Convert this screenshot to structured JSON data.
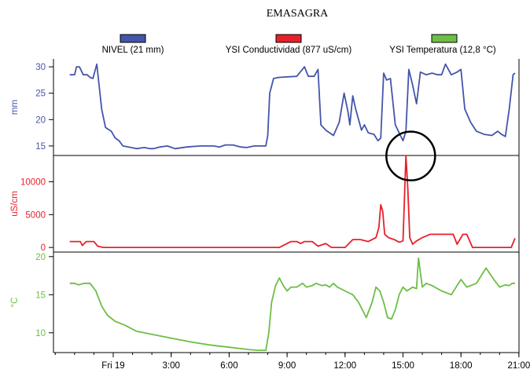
{
  "title": "EMASAGRA",
  "legend": [
    {
      "label": "NIVEL (21 mm)",
      "color": "#4455AA"
    },
    {
      "label": "YSI Conductividad (877 uS/cm)",
      "color": "#E8202A"
    },
    {
      "label": "YSI Temperatura (12,8 °C)",
      "color": "#6DBE45"
    }
  ],
  "x_axis": {
    "ticks": [
      {
        "label": "Fri 19",
        "hour": 0
      },
      {
        "label": "3:00",
        "hour": 3
      },
      {
        "label": "6:00",
        "hour": 6
      },
      {
        "label": "9:00",
        "hour": 9
      },
      {
        "label": "12:00",
        "hour": 12
      },
      {
        "label": "15:00",
        "hour": 15
      },
      {
        "label": "18:00",
        "hour": 18
      },
      {
        "label": "21:00",
        "hour": 21
      }
    ]
  },
  "chart_data": [
    {
      "type": "line",
      "name": "NIVEL (21 mm)",
      "ylabel": "mm",
      "ylim": [
        13.2,
        31.5
      ],
      "yticks": [
        15,
        20,
        25,
        30
      ],
      "color": "#4455AA",
      "x": [
        -2.25,
        -2.0,
        -1.9,
        -1.75,
        -1.55,
        -1.35,
        -1.2,
        -1.05,
        -0.85,
        -0.6,
        -0.4,
        -0.1,
        0.1,
        0.3,
        0.5,
        0.8,
        1.2,
        1.6,
        1.9,
        2.1,
        2.4,
        2.8,
        3.2,
        3.8,
        4.5,
        5.2,
        5.5,
        5.8,
        6.2,
        6.6,
        6.9,
        7.3,
        7.7,
        7.9,
        8.0,
        8.1,
        8.3,
        8.6,
        9.5,
        9.9,
        10.1,
        10.4,
        10.6,
        10.75,
        11.0,
        11.4,
        11.7,
        11.95,
        12.15,
        12.25,
        12.4,
        12.55,
        12.7,
        12.85,
        13.0,
        13.2,
        13.5,
        13.7,
        13.85,
        14.0,
        14.15,
        14.35,
        14.6,
        14.8,
        15.0,
        15.15,
        15.3,
        15.5,
        15.7,
        15.9,
        16.2,
        16.5,
        16.8,
        17.0,
        17.2,
        17.5,
        17.8,
        18.0,
        18.2,
        18.5,
        18.8,
        19.2,
        19.6,
        19.9,
        20.1,
        20.3,
        20.5,
        20.7,
        20.8
      ],
      "y": [
        28.5,
        28.5,
        30,
        30,
        28.5,
        28.5,
        28,
        27.8,
        30.5,
        22,
        18.5,
        17.8,
        16.5,
        16,
        15,
        14.8,
        14.5,
        14.7,
        14.5,
        14.5,
        14.8,
        15,
        14.5,
        14.8,
        15,
        15,
        14.8,
        15.2,
        15.2,
        14.8,
        14.7,
        15,
        15,
        15,
        17,
        25,
        27.8,
        28,
        28.2,
        30,
        28.2,
        28.2,
        29.5,
        19,
        18,
        17,
        19.5,
        25,
        21.5,
        19,
        24.5,
        22,
        20,
        18,
        19,
        17.5,
        17.2,
        16,
        16.5,
        28.8,
        27.5,
        27.8,
        19,
        17.5,
        16,
        17.8,
        29.5,
        26.5,
        23,
        29,
        28.5,
        28.8,
        28.5,
        28.5,
        30.5,
        28.5,
        29,
        29.5,
        22,
        19.5,
        17.8,
        17.2,
        17,
        17.8,
        17.2,
        16.8,
        22,
        28.5,
        28.8
      ]
    },
    {
      "type": "line",
      "name": "YSI Conductividad (877 uS/cm)",
      "ylabel": "uS/cm",
      "ylim": [
        -700,
        14000
      ],
      "yticks": [
        0,
        5000,
        10000
      ],
      "color": "#E8202A",
      "x": [
        -2.25,
        -1.7,
        -1.6,
        -1.4,
        -1.0,
        -0.8,
        -0.5,
        2.0,
        5.0,
        8.0,
        8.3,
        8.6,
        9.2,
        9.5,
        9.7,
        9.9,
        10.3,
        10.6,
        11.0,
        11.3,
        11.6,
        12.0,
        12.4,
        12.8,
        13.2,
        13.6,
        13.75,
        13.85,
        13.95,
        14.05,
        14.25,
        14.55,
        14.8,
        15.0,
        15.15,
        15.25,
        15.35,
        15.5,
        15.7,
        16.0,
        16.4,
        17.0,
        17.6,
        17.8,
        18.1,
        18.3,
        18.6,
        19.5,
        20.2,
        20.6,
        20.8
      ],
      "y": [
        900,
        900,
        300,
        900,
        900,
        200,
        0,
        0,
        0,
        0,
        0,
        0,
        900,
        900,
        600,
        900,
        900,
        200,
        600,
        0,
        0,
        0,
        1200,
        1200,
        900,
        1500,
        3000,
        6500,
        5500,
        2000,
        1500,
        1200,
        800,
        1000,
        14000,
        9000,
        1500,
        500,
        1000,
        1500,
        2000,
        2000,
        2000,
        500,
        2000,
        2000,
        0,
        0,
        0,
        0,
        1400
      ]
    },
    {
      "type": "line",
      "name": "YSI Temperatura (12,8 °C)",
      "ylabel": "°C",
      "ylim": [
        7.4,
        20.6
      ],
      "yticks": [
        10,
        15,
        20
      ],
      "color": "#6DBE45",
      "x": [
        -2.25,
        -2.0,
        -1.8,
        -1.5,
        -1.2,
        -0.9,
        -0.6,
        -0.3,
        0.1,
        0.6,
        1.2,
        2.0,
        3.0,
        4.0,
        5.0,
        6.0,
        7.0,
        7.5,
        7.9,
        8.05,
        8.2,
        8.4,
        8.6,
        8.8,
        9.0,
        9.2,
        9.5,
        9.8,
        10.0,
        10.3,
        10.5,
        10.8,
        11.0,
        11.2,
        11.4,
        11.6,
        12.0,
        12.4,
        12.7,
        12.9,
        13.1,
        13.4,
        13.6,
        13.8,
        14.0,
        14.1,
        14.2,
        14.4,
        14.6,
        14.8,
        15.0,
        15.2,
        15.5,
        15.7,
        15.8,
        16.0,
        16.2,
        16.5,
        17.0,
        17.5,
        18.0,
        18.3,
        18.8,
        19.3,
        19.7,
        20.0,
        20.3,
        20.5,
        20.65,
        20.8
      ],
      "y": [
        16.5,
        16.5,
        16.3,
        16.5,
        16.5,
        15.5,
        13.5,
        12.3,
        11.5,
        11.0,
        10.2,
        9.8,
        9.3,
        8.8,
        8.4,
        8.1,
        7.8,
        7.7,
        7.7,
        10.0,
        14.0,
        16.2,
        17.2,
        16.2,
        15.5,
        16.0,
        16.0,
        16.5,
        16.0,
        16.2,
        16.5,
        16.2,
        16.3,
        16.0,
        16.5,
        16.0,
        15.5,
        15.0,
        14.0,
        13.0,
        12.0,
        14.0,
        16.0,
        15.5,
        14.0,
        13.0,
        12.0,
        11.8,
        13.0,
        15.0,
        16.0,
        15.5,
        16.0,
        15.8,
        19.8,
        16.0,
        16.5,
        16.2,
        15.5,
        15.0,
        17.0,
        16.0,
        16.5,
        18.5,
        17.0,
        16.0,
        16.3,
        16.2,
        16.5,
        16.5
      ]
    }
  ],
  "annotation": {
    "type": "circle",
    "at_hour": 15.4,
    "at_value": 13.1,
    "series": "NIVEL (21 mm)"
  }
}
